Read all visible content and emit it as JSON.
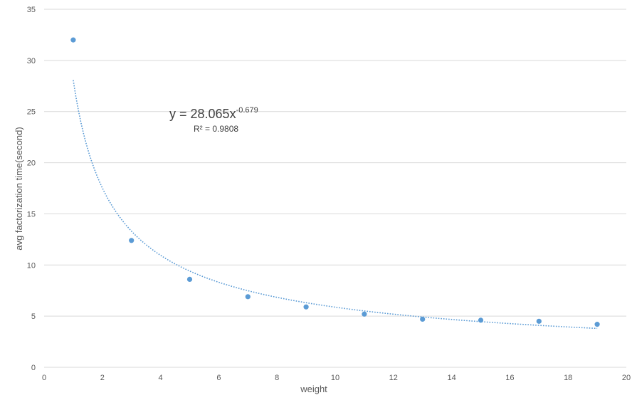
{
  "chart_data": {
    "type": "scatter",
    "title": "",
    "xlabel": "weight",
    "ylabel": "avg factorization time(second)",
    "xlim": [
      0,
      20
    ],
    "ylim": [
      0,
      35
    ],
    "x_ticks": [
      0,
      2,
      4,
      6,
      8,
      10,
      12,
      14,
      16,
      18,
      20
    ],
    "y_ticks": [
      0,
      5,
      10,
      15,
      20,
      25,
      30,
      35
    ],
    "grid": "horizontal",
    "series": [
      {
        "x": [
          1,
          3,
          5,
          7,
          9,
          11,
          13,
          15,
          17,
          19
        ],
        "y": [
          32.0,
          12.4,
          8.6,
          6.9,
          5.9,
          5.2,
          4.7,
          4.6,
          4.5,
          4.2
        ],
        "color": "#5B9BD5"
      }
    ],
    "trendline": {
      "type": "power",
      "coefficient": 28.065,
      "exponent": -0.679,
      "x_range": [
        1,
        19
      ],
      "color": "#5B9BD5",
      "style": "dotted",
      "equation_main": "y = 28.065x",
      "equation_exp": "-0.679",
      "r_squared": "R² = 0.9808"
    }
  }
}
